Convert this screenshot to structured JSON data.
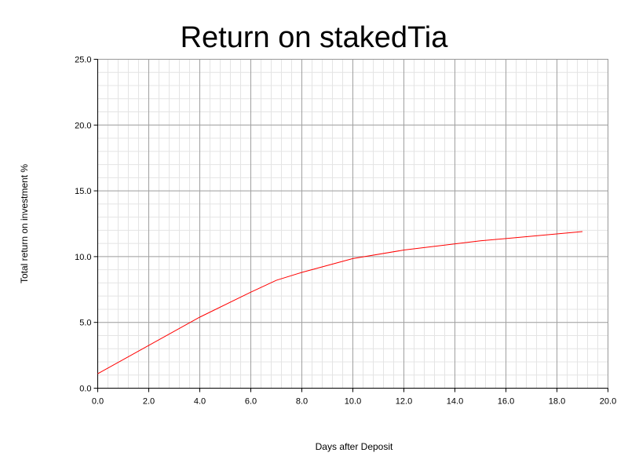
{
  "chart_data": {
    "type": "line",
    "title": "Return on stakedTia",
    "xlabel": "Days after Deposit",
    "ylabel": "Total return on investment %",
    "xlim": [
      0,
      20
    ],
    "ylim": [
      0,
      25
    ],
    "x_ticks": [
      "0.0",
      "2.0",
      "4.0",
      "6.0",
      "8.0",
      "10.0",
      "12.0",
      "14.0",
      "16.0",
      "18.0",
      "20.0"
    ],
    "y_ticks": [
      "0.0",
      "5.0",
      "10.0",
      "15.0",
      "20.0",
      "25.0"
    ],
    "grid": true,
    "legend": "none",
    "series": [
      {
        "color": "#ff0000",
        "x": [
          0,
          4,
          6,
          7,
          8,
          10,
          12,
          15,
          19
        ],
        "y": [
          1.1,
          5.4,
          7.3,
          8.2,
          8.8,
          9.85,
          10.5,
          11.2,
          11.9
        ]
      }
    ]
  }
}
